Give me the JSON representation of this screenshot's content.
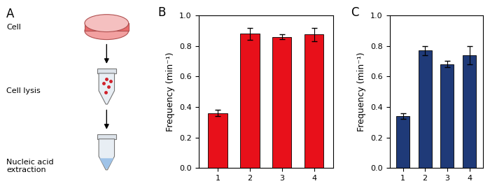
{
  "diagram": {
    "panel": "A",
    "steps": [
      {
        "label": "Cell"
      },
      {
        "label": "Cell lysis"
      },
      {
        "label": "Nucleic acid\nextraction"
      }
    ]
  },
  "chart_data": [
    {
      "type": "bar",
      "title": "B",
      "categories": [
        "1",
        "2",
        "3",
        "4"
      ],
      "values": [
        0.36,
        0.88,
        0.86,
        0.875
      ],
      "errors": [
        0.02,
        0.04,
        0.015,
        0.045
      ],
      "color": "#e8101a",
      "y_label": "Frequency (min⁻¹)",
      "ylim": [
        0.0,
        1.0
      ],
      "yticks": [
        0.0,
        0.2,
        0.4,
        0.6,
        0.8,
        1.0
      ]
    },
    {
      "type": "bar",
      "title": "C",
      "categories": [
        "1",
        "2",
        "3",
        "4"
      ],
      "values": [
        0.34,
        0.77,
        0.68,
        0.74
      ],
      "errors": [
        0.02,
        0.03,
        0.02,
        0.06
      ],
      "color": "#1f3a78",
      "y_label": "Frequency (min⁻¹)",
      "ylim": [
        0.0,
        1.0
      ],
      "yticks": [
        0.0,
        0.2,
        0.4,
        0.6,
        0.8,
        1.0
      ]
    }
  ]
}
